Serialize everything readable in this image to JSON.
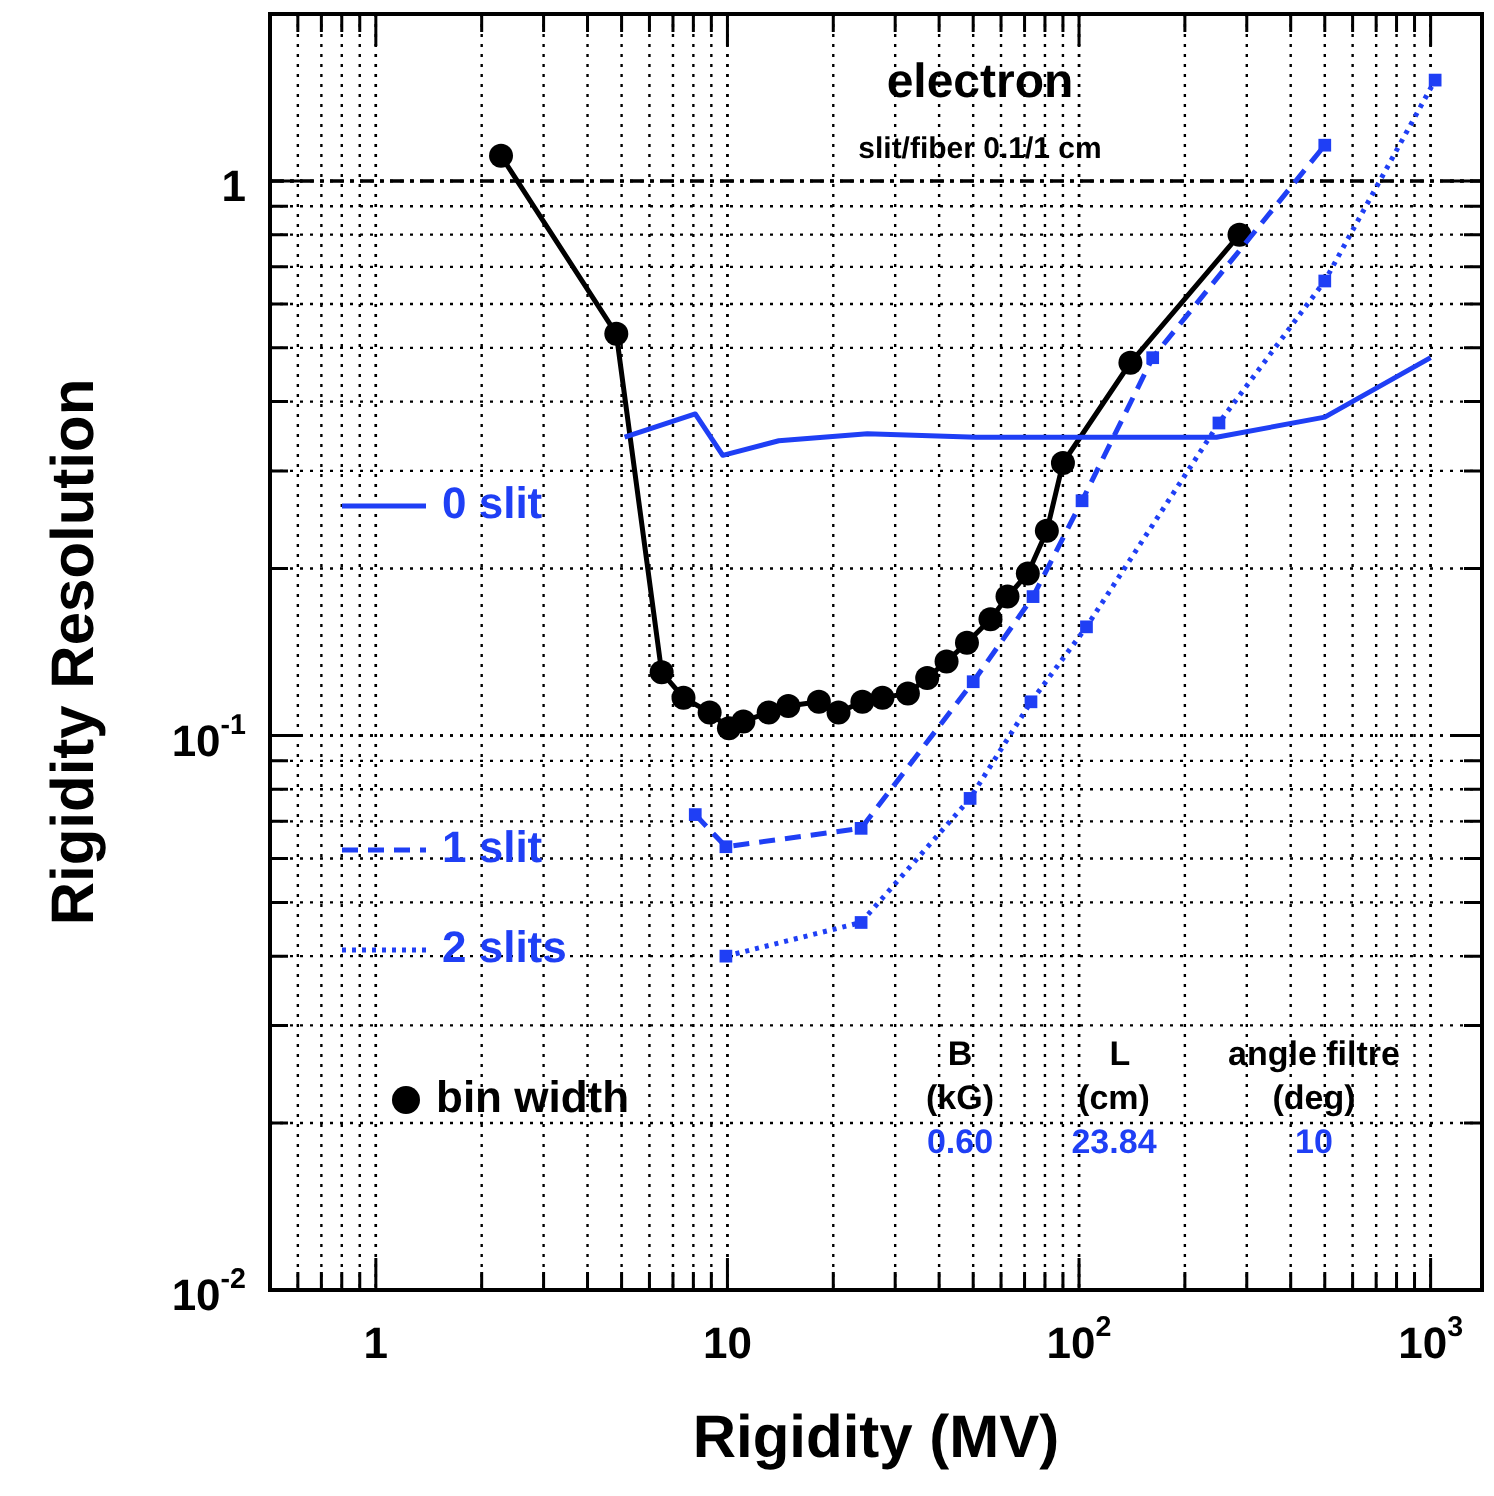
{
  "chart_data": {
    "type": "line",
    "xlabel": "Rigidity (MV)",
    "ylabel": "Rigidity Resolution",
    "log": "xy",
    "grid": true,
    "legend": "left",
    "xlim": [
      0.5,
      1400
    ],
    "ylim": [
      0.01,
      2
    ],
    "xticks": [
      1,
      10,
      {
        "value": 100,
        "label": "10$^{2}$"
      },
      {
        "value": 1000,
        "label": "10$^{3}$"
      }
    ],
    "yticks": [
      {
        "value": 0.01,
        "label": "10$^{-2}$"
      },
      {
        "value": 0.1,
        "label": "10$^{-1}$"
      },
      1
    ],
    "ref_lines": [
      {
        "axis": "y",
        "value": 1,
        "color": "#000000",
        "line_style": "dashed"
      }
    ],
    "annotations": [
      "electron",
      "slit/fiber 0.1/1 cm",
      "B",
      "(kG)",
      "0.60",
      "L",
      "(cm)",
      "23.84",
      "angle filtre",
      "(deg)",
      "10"
    ],
    "series": [
      {
        "name": "0 slit",
        "color": "#1f3ff5",
        "line_style": "solid",
        "marker": "none",
        "x": [
          5.1,
          8.1,
          9.7,
          14,
          25,
          51,
          246,
          500,
          1000
        ],
        "values": [
          0.345,
          0.38,
          0.32,
          0.34,
          0.35,
          0.345,
          0.345,
          0.375,
          0.48
        ]
      },
      {
        "name": "1 slit",
        "color": "#1f3ff5",
        "line_style": "dashed",
        "marker": "square",
        "x": [
          8.1,
          9.9,
          24,
          50,
          74,
          102,
          162,
          500
        ],
        "values": [
          0.072,
          0.063,
          0.068,
          0.125,
          0.178,
          0.265,
          0.48,
          1.16
        ]
      },
      {
        "name": "2 slits",
        "color": "#1f3ff5",
        "line_style": "dotted",
        "marker": "square",
        "x": [
          9.9,
          24,
          49,
          73,
          105,
          250,
          500,
          1030
        ],
        "values": [
          0.04,
          0.046,
          0.077,
          0.115,
          0.157,
          0.366,
          0.66,
          1.52
        ]
      },
      {
        "name": "bin width",
        "color": "#000000",
        "line_style": "solid",
        "marker": "circle",
        "x": [
          2.27,
          4.83,
          6.5,
          7.5,
          8.9,
          10.1,
          11.1,
          13.1,
          14.9,
          18.2,
          20.7,
          24.2,
          27.6,
          32.6,
          37,
          42,
          48,
          56,
          62.6,
          71.5,
          81,
          90,
          140,
          286
        ],
        "values": [
          1.11,
          0.53,
          0.13,
          0.117,
          0.11,
          0.103,
          0.106,
          0.11,
          0.113,
          0.115,
          0.11,
          0.115,
          0.117,
          0.119,
          0.127,
          0.136,
          0.147,
          0.162,
          0.178,
          0.196,
          0.234,
          0.31,
          0.47,
          0.8
        ]
      }
    ]
  }
}
